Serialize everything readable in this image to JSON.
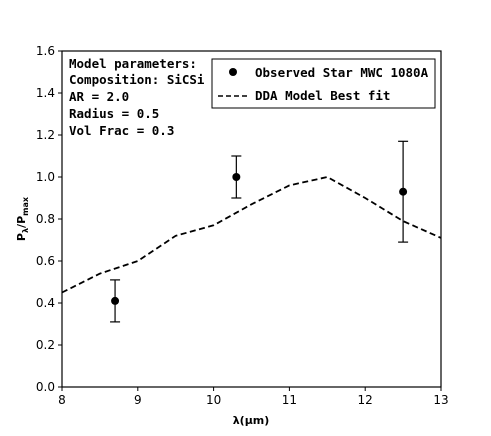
{
  "chart_data": {
    "type": "scatter",
    "xlim": [
      8,
      13
    ],
    "ylim": [
      0.0,
      1.6
    ],
    "xticks": [
      "8",
      "9",
      "10",
      "11",
      "12",
      "13"
    ],
    "yticks": [
      "0.0",
      "0.2",
      "0.4",
      "0.6",
      "0.8",
      "1.0",
      "1.2",
      "1.4",
      "1.6"
    ],
    "xlabel": "λ(μm)",
    "ylabel_main": "P",
    "ylabel_sub1": "λ",
    "ylabel_sep": "/P",
    "ylabel_sub2": "max",
    "grid": false,
    "legend_position": "top-right",
    "series": [
      {
        "name": "Observed Star MWC 1080A",
        "style": "markers-with-errorbars",
        "color": "#000000",
        "points": [
          {
            "x": 8.7,
            "y": 0.41,
            "yerr": 0.1
          },
          {
            "x": 10.3,
            "y": 1.0,
            "yerr": 0.1
          },
          {
            "x": 12.5,
            "y": 0.93,
            "yerr": 0.24
          }
        ]
      },
      {
        "name": "DDA Model Best fit",
        "style": "dashed-line",
        "color": "#000000",
        "x": [
          8.0,
          8.5,
          9.0,
          9.5,
          10.0,
          10.5,
          11.0,
          11.5,
          12.0,
          12.5,
          13.0
        ],
        "y": [
          0.45,
          0.54,
          0.6,
          0.72,
          0.77,
          0.87,
          0.96,
          1.0,
          0.9,
          0.79,
          0.71
        ]
      }
    ],
    "annotation": {
      "lines": [
        "Model parameters:",
        "Composition: SiCSi",
        "AR = 2.0",
        "Radius = 0.5",
        "Vol Frac = 0.3"
      ]
    }
  }
}
